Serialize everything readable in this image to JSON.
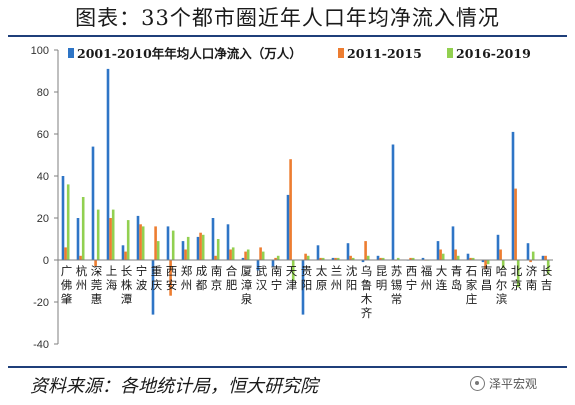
{
  "title": "图表：33个都市圈近年人口年均净流入情况",
  "source": "资料来源：各地统计局，恒大研究院",
  "watermark": "泽平宏观",
  "chart_data": {
    "type": "bar",
    "title": "",
    "xlabel": "",
    "ylabel": "",
    "ylim": [
      -40,
      100
    ],
    "yticks": [
      -40,
      -20,
      0,
      20,
      40,
      60,
      80,
      100
    ],
    "grid": false,
    "legend_position": "top",
    "categories": [
      "广佛肇",
      "杭州",
      "深莞惠",
      "上海",
      "长株潭",
      "宁波",
      "重庆",
      "西安",
      "郑州",
      "成都",
      "南京",
      "合肥",
      "厦漳泉",
      "武汉",
      "南宁",
      "天津",
      "贵阳",
      "太原",
      "兰州",
      "沈阳",
      "乌鲁木齐",
      "昆明",
      "苏锡常",
      "西宁",
      "福州",
      "大连",
      "青岛",
      "石家庄",
      "南昌",
      "哈尔滨",
      "北京",
      "济南",
      "长吉"
    ],
    "series": [
      {
        "name": "2001-2010年年均人口净流入（万人）",
        "color": "#2e75c6",
        "values": [
          40,
          20,
          54,
          91,
          7,
          21,
          -26,
          16,
          9,
          11,
          20,
          17,
          1,
          -5,
          -3,
          31,
          -26,
          7,
          1,
          8,
          -1,
          2,
          55,
          0,
          1,
          9,
          16,
          3,
          -1,
          12,
          61,
          8,
          2
        ]
      },
      {
        "name": "2011-2015",
        "color": "#ed7d31",
        "values": [
          6,
          2,
          -3,
          20,
          4,
          17,
          16,
          -17,
          5,
          13,
          2,
          5,
          4,
          6,
          1,
          48,
          3,
          1,
          1,
          2,
          9,
          1,
          0,
          1,
          0,
          5,
          5,
          1,
          -4,
          5,
          34,
          -1,
          2
        ]
      },
      {
        "name": "2016-2019",
        "color": "#92d050",
        "values": [
          36,
          30,
          24,
          24,
          19,
          16,
          9,
          14,
          11,
          12,
          10,
          6,
          5,
          4,
          2,
          -10,
          2,
          1,
          1,
          1,
          2,
          1,
          1,
          1,
          0,
          3,
          2,
          1,
          -2,
          -4,
          -13,
          4,
          -7
        ]
      }
    ]
  }
}
